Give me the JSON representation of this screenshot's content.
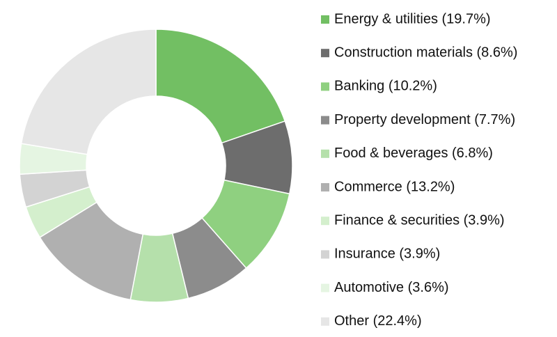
{
  "chart_data": {
    "type": "donut",
    "categories": [
      "Energy & utilities (19.7%)",
      "Construction materials (8.6%)",
      "Banking (10.2%)",
      "Property development (7.7%)",
      "Food & beverages (6.8%)",
      "Commerce (13.2%)",
      "Finance & securities (3.9%)",
      "Insurance (3.9%)",
      "Automotive (3.6%)",
      "Other (22.4%)"
    ],
    "values": [
      19.7,
      8.6,
      10.2,
      7.7,
      6.8,
      13.2,
      3.9,
      3.9,
      3.6,
      22.4
    ],
    "colors": [
      "#72bf63",
      "#6d6d6d",
      "#8fd080",
      "#8c8c8c",
      "#b5e0ab",
      "#b0b0b0",
      "#d4efcd",
      "#d3d3d3",
      "#e5f5e2",
      "#e6e6e6"
    ]
  }
}
